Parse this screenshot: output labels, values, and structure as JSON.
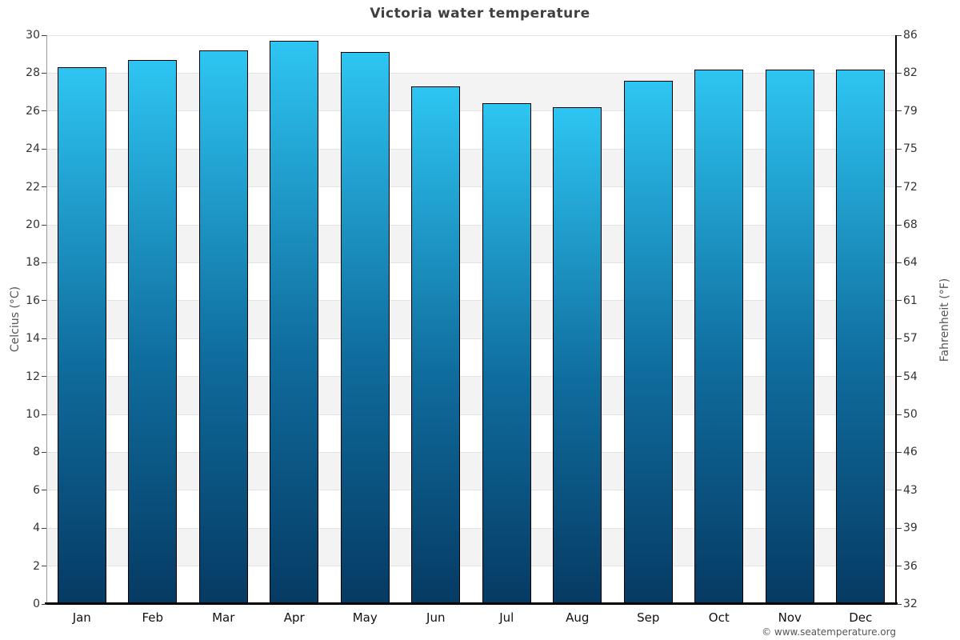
{
  "page_title": "Victoria water temperature",
  "chart_data": {
    "type": "bar",
    "title": "Victoria water temperature",
    "categories": [
      "Jan",
      "Feb",
      "Mar",
      "Apr",
      "May",
      "Jun",
      "Jul",
      "Aug",
      "Sep",
      "Oct",
      "Nov",
      "Dec"
    ],
    "values": [
      28.3,
      28.7,
      29.2,
      29.7,
      29.1,
      27.3,
      26.4,
      26.2,
      27.6,
      28.2,
      28.2,
      28.2
    ],
    "unit": "°C",
    "xlabel": "",
    "ylabel_left": "Celcius (°C)",
    "ylabel_right": "Fahrenheit (°F)",
    "ylim": [
      0,
      30
    ],
    "celsius_tick_step": 2,
    "celsius_ticks": [
      0,
      2,
      4,
      6,
      8,
      10,
      12,
      14,
      16,
      18,
      20,
      22,
      24,
      26,
      28,
      30
    ],
    "fahrenheit_ticks_bottom_to_top": [
      "32",
      "36",
      "39",
      "43",
      "46",
      "50",
      "54",
      "57",
      "61",
      "64",
      "68",
      "72",
      "75",
      "79",
      "82",
      "86"
    ],
    "legend": "none",
    "grid": "alternating white/gray horizontal bands every 2°C",
    "colors": {
      "bar_gradient_top": "#2ec5f2",
      "bar_gradient_bottom": "#063a63",
      "bar_border": "#000000",
      "band_gray": "#f3f3f3",
      "gridline": "#e3e3e3",
      "title_text": "#3f3f3f",
      "axis_text": "#555555",
      "tick_text": "#333333"
    }
  },
  "footer": {
    "copyright": "© www.seatemperature.org"
  }
}
